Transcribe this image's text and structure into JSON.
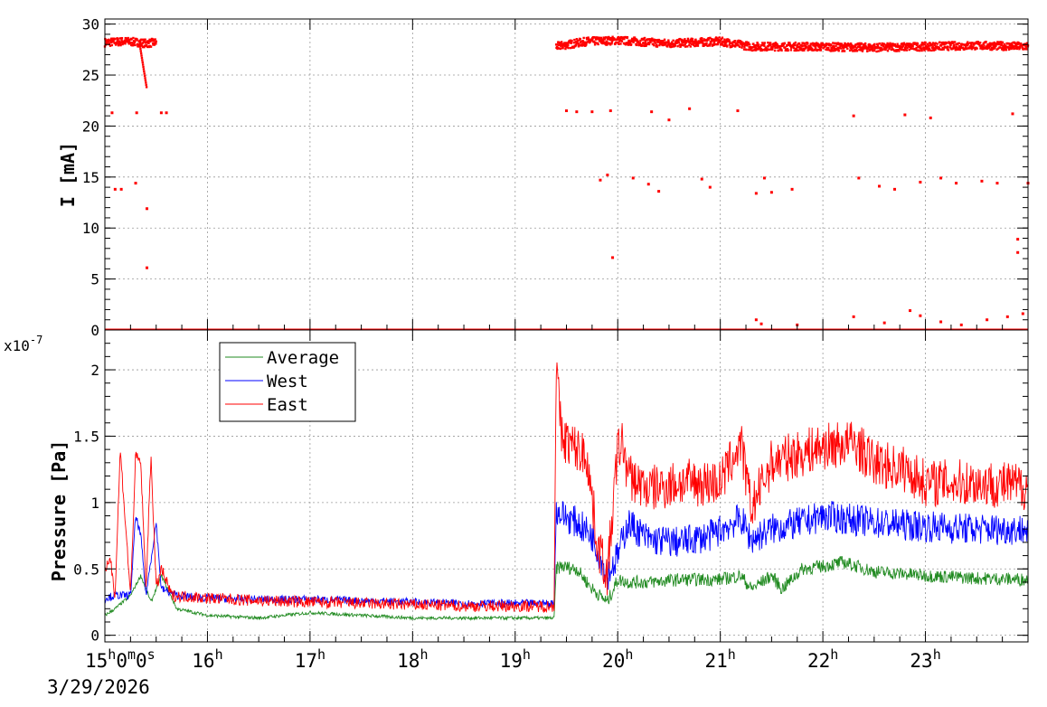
{
  "chart_data": [
    {
      "type": "scatter",
      "ylabel": "I [mA]",
      "ylim": [
        0,
        30.5
      ],
      "yticks": [
        "0",
        "5",
        "10",
        "15",
        "20",
        "25",
        "30"
      ],
      "grid": true,
      "series": [
        {
          "color": "#ff0000",
          "segments": [
            {
              "x": [
                15.0,
                15.2,
                15.33,
                15.4,
                15.5
              ],
              "y": [
                28.2,
                28.3,
                28.2,
                28.1,
                28.2
              ]
            },
            {
              "x": [
                19.4,
                19.7,
                20.0,
                20.5,
                21.0,
                21.3,
                21.8,
                22.5,
                23.0,
                23.5,
                24.0
              ],
              "y": [
                27.8,
                28.3,
                28.4,
                28.1,
                28.3,
                27.8,
                27.8,
                27.7,
                27.8,
                27.9,
                27.8
              ]
            }
          ],
          "outliers": [
            {
              "x": 15.07,
              "y": 21.3
            },
            {
              "x": 15.1,
              "y": 13.8
            },
            {
              "x": 15.16,
              "y": 13.8
            },
            {
              "x": 15.31,
              "y": 21.3
            },
            {
              "x": 15.3,
              "y": 14.4
            },
            {
              "x": 15.41,
              "y": 11.9
            },
            {
              "x": 15.41,
              "y": 6.1
            },
            {
              "x": 15.55,
              "y": 21.3
            },
            {
              "x": 15.6,
              "y": 21.3
            },
            {
              "x": 19.5,
              "y": 21.5
            },
            {
              "x": 19.6,
              "y": 21.4
            },
            {
              "x": 19.75,
              "y": 21.4
            },
            {
              "x": 19.83,
              "y": 14.7
            },
            {
              "x": 19.9,
              "y": 15.2
            },
            {
              "x": 19.93,
              "y": 21.5
            },
            {
              "x": 19.95,
              "y": 7.1
            },
            {
              "x": 20.15,
              "y": 14.9
            },
            {
              "x": 20.3,
              "y": 14.3
            },
            {
              "x": 20.33,
              "y": 21.4
            },
            {
              "x": 20.4,
              "y": 13.6
            },
            {
              "x": 20.5,
              "y": 20.6
            },
            {
              "x": 20.7,
              "y": 21.7
            },
            {
              "x": 20.82,
              "y": 14.8
            },
            {
              "x": 20.9,
              "y": 14.0
            },
            {
              "x": 21.17,
              "y": 21.5
            },
            {
              "x": 21.35,
              "y": 13.4
            },
            {
              "x": 21.43,
              "y": 14.9
            },
            {
              "x": 21.5,
              "y": 13.5
            },
            {
              "x": 21.7,
              "y": 13.8
            },
            {
              "x": 22.3,
              "y": 21.0
            },
            {
              "x": 22.35,
              "y": 14.9
            },
            {
              "x": 22.55,
              "y": 14.1
            },
            {
              "x": 22.7,
              "y": 13.8
            },
            {
              "x": 22.8,
              "y": 21.1
            },
            {
              "x": 22.95,
              "y": 14.5
            },
            {
              "x": 23.05,
              "y": 20.8
            },
            {
              "x": 23.15,
              "y": 14.9
            },
            {
              "x": 23.3,
              "y": 14.4
            },
            {
              "x": 23.55,
              "y": 14.6
            },
            {
              "x": 23.7,
              "y": 14.4
            },
            {
              "x": 23.85,
              "y": 21.2
            },
            {
              "x": 23.9,
              "y": 8.9
            },
            {
              "x": 23.9,
              "y": 7.6
            },
            {
              "x": 24.0,
              "y": 14.4
            },
            {
              "x": 21.35,
              "y": 1.0
            },
            {
              "x": 21.4,
              "y": 0.6
            },
            {
              "x": 21.75,
              "y": 0.5
            },
            {
              "x": 22.3,
              "y": 1.3
            },
            {
              "x": 22.6,
              "y": 0.7
            },
            {
              "x": 22.85,
              "y": 1.9
            },
            {
              "x": 22.95,
              "y": 1.4
            },
            {
              "x": 23.15,
              "y": 0.8
            },
            {
              "x": 23.35,
              "y": 0.5
            },
            {
              "x": 23.6,
              "y": 1.0
            },
            {
              "x": 23.8,
              "y": 1.3
            },
            {
              "x": 23.95,
              "y": 1.6
            }
          ],
          "baseline": 0
        }
      ]
    },
    {
      "type": "line",
      "ylabel": "Pressure [Pa]",
      "yscale_label": "x10",
      "yscale_exponent": "-7",
      "ylim": [
        -0.05,
        2.3
      ],
      "yticks": [
        "0",
        "0.5",
        "1",
        "1.5",
        "2"
      ],
      "grid": true,
      "legend_position": "top-left",
      "series": [
        {
          "name": "Average",
          "color": "#228b22",
          "x": [
            15.0,
            15.1,
            15.25,
            15.35,
            15.45,
            15.55,
            15.7,
            16.0,
            16.5,
            17.0,
            17.5,
            18.0,
            18.5,
            19.0,
            19.38,
            19.4,
            19.45,
            19.6,
            19.75,
            19.9,
            20.0,
            20.1,
            20.3,
            20.6,
            21.0,
            21.2,
            21.3,
            21.5,
            21.6,
            21.8,
            22.0,
            22.2,
            22.5,
            23.0,
            23.5,
            24.0
          ],
          "y": [
            0.15,
            0.2,
            0.3,
            0.45,
            0.25,
            0.45,
            0.2,
            0.15,
            0.13,
            0.17,
            0.15,
            0.13,
            0.13,
            0.13,
            0.13,
            0.5,
            0.52,
            0.5,
            0.35,
            0.25,
            0.42,
            0.4,
            0.4,
            0.42,
            0.42,
            0.45,
            0.35,
            0.45,
            0.35,
            0.5,
            0.52,
            0.55,
            0.48,
            0.45,
            0.43,
            0.42
          ],
          "noise": 0.05
        },
        {
          "name": "West",
          "color": "#0000ff",
          "x": [
            15.0,
            15.1,
            15.25,
            15.3,
            15.35,
            15.4,
            15.5,
            15.55,
            15.7,
            16.0,
            16.5,
            17.0,
            17.5,
            18.0,
            18.5,
            19.0,
            19.38,
            19.4,
            19.6,
            19.75,
            19.9,
            20.0,
            20.1,
            20.3,
            20.6,
            20.9,
            21.2,
            21.3,
            21.5,
            21.8,
            22.0,
            22.2,
            22.5,
            23.0,
            23.5,
            24.0
          ],
          "y": [
            0.28,
            0.3,
            0.3,
            0.9,
            0.75,
            0.3,
            0.85,
            0.35,
            0.3,
            0.28,
            0.27,
            0.27,
            0.26,
            0.25,
            0.24,
            0.24,
            0.24,
            0.93,
            0.85,
            0.75,
            0.45,
            0.6,
            0.85,
            0.72,
            0.7,
            0.75,
            0.88,
            0.72,
            0.8,
            0.85,
            0.9,
            0.88,
            0.85,
            0.82,
            0.8,
            0.8
          ],
          "noise": 0.12
        },
        {
          "name": "East",
          "color": "#ff0000",
          "x": [
            15.0,
            15.05,
            15.1,
            15.15,
            15.25,
            15.3,
            15.35,
            15.4,
            15.45,
            15.5,
            15.55,
            15.65,
            16.0,
            16.5,
            17.0,
            17.5,
            18.0,
            18.5,
            19.0,
            19.38,
            19.4,
            19.45,
            19.6,
            19.7,
            19.8,
            19.9,
            20.0,
            20.05,
            20.1,
            20.3,
            20.6,
            21.0,
            21.2,
            21.3,
            21.5,
            21.7,
            22.0,
            22.3,
            22.5,
            22.8,
            23.0,
            23.5,
            24.0
          ],
          "y": [
            0.45,
            0.6,
            0.3,
            1.4,
            0.3,
            1.35,
            1.3,
            0.35,
            1.35,
            0.35,
            0.5,
            0.3,
            0.28,
            0.26,
            0.25,
            0.24,
            0.23,
            0.22,
            0.22,
            0.22,
            2.05,
            1.5,
            1.4,
            1.35,
            0.7,
            0.45,
            1.4,
            1.45,
            1.2,
            1.1,
            1.15,
            1.15,
            1.45,
            0.95,
            1.3,
            1.35,
            1.42,
            1.45,
            1.3,
            1.25,
            1.15,
            1.15,
            1.12
          ],
          "noise": 0.18
        }
      ]
    }
  ],
  "x_axis": {
    "xlim": [
      15.0,
      24.0
    ],
    "first_tick_label": {
      "hours": "15",
      "h": "h",
      "minutes": "0",
      "m": "m",
      "seconds": "0",
      "s": "s"
    },
    "hour_labels": [
      {
        "value": "16",
        "unit": "h",
        "x": 16
      },
      {
        "value": "17",
        "unit": "h",
        "x": 17
      },
      {
        "value": "18",
        "unit": "h",
        "x": 18
      },
      {
        "value": "19",
        "unit": "h",
        "x": 19
      },
      {
        "value": "20",
        "unit": "h",
        "x": 20
      },
      {
        "value": "21",
        "unit": "h",
        "x": 21
      },
      {
        "value": "22",
        "unit": "h",
        "x": 22
      },
      {
        "value": "23",
        "unit": "h",
        "x": 23
      }
    ],
    "date_label": "3/29/2026"
  }
}
